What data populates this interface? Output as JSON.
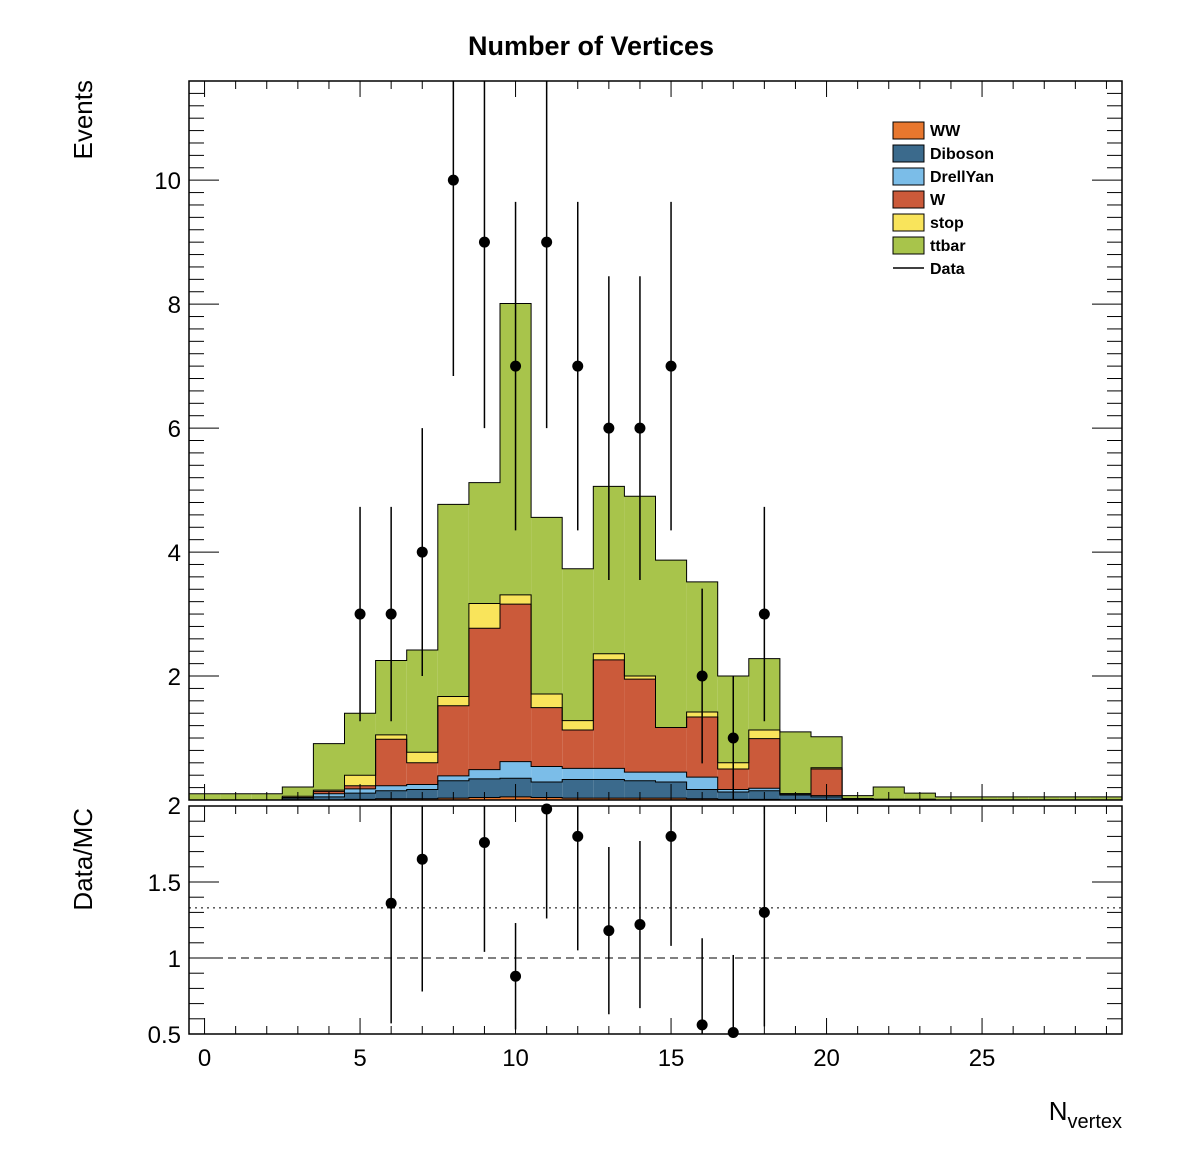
{
  "chart_data": [
    {
      "type": "bar",
      "stacked": true,
      "title": "Number of Vertices",
      "xlabel": "",
      "ylabel": "Events",
      "xlim": [
        -0.5,
        29.5
      ],
      "ylim": [
        0,
        11.6
      ],
      "y_ticks": [
        2,
        4,
        6,
        8,
        10
      ],
      "bin_edges": [
        -0.5,
        0.5,
        1.5,
        2.5,
        3.5,
        4.5,
        5.5,
        6.5,
        7.5,
        8.5,
        9.5,
        10.5,
        11.5,
        12.5,
        13.5,
        14.5,
        15.5,
        16.5,
        17.5,
        18.5,
        19.5,
        20.5,
        21.5,
        22.5,
        23.5,
        24.5,
        25.5,
        26.5,
        27.5,
        28.5,
        29.5
      ],
      "series": [
        {
          "name": "WW",
          "color": "#e8772e",
          "values": [
            0,
            0,
            0,
            0,
            0,
            0.01,
            0.02,
            0.02,
            0.03,
            0.04,
            0.05,
            0.04,
            0.03,
            0.03,
            0.03,
            0.03,
            0.02,
            0.01,
            0.01,
            0,
            0,
            0,
            0,
            0,
            0,
            0,
            0,
            0,
            0,
            0
          ]
        },
        {
          "name": "Diboson",
          "color": "#3b6a8c",
          "values": [
            0,
            0,
            0,
            0.02,
            0.05,
            0.1,
            0.13,
            0.15,
            0.28,
            0.3,
            0.3,
            0.25,
            0.3,
            0.3,
            0.28,
            0.26,
            0.15,
            0.12,
            0.14,
            0.08,
            0.05,
            0.02,
            0.01,
            0.01,
            0,
            0,
            0,
            0,
            0,
            0
          ]
        },
        {
          "name": "DrellYan",
          "color": "#7bbde8",
          "values": [
            0,
            0,
            0,
            0.02,
            0.05,
            0.07,
            0.08,
            0.08,
            0.08,
            0.15,
            0.27,
            0.25,
            0.18,
            0.18,
            0.14,
            0.16,
            0.2,
            0.04,
            0.04,
            0.02,
            0.02,
            0,
            0,
            0,
            0,
            0,
            0,
            0,
            0,
            0
          ]
        },
        {
          "name": "W",
          "color": "#cb5a3a",
          "values": [
            0,
            0,
            0,
            0,
            0.04,
            0.05,
            0.75,
            0.35,
            1.13,
            2.28,
            2.54,
            0.95,
            0.62,
            1.75,
            1.5,
            0.72,
            0.97,
            0.33,
            0.8,
            0,
            0.43,
            0,
            0,
            0,
            0,
            0,
            0,
            0,
            0,
            0
          ]
        },
        {
          "name": "stop",
          "color": "#f9e45b",
          "values": [
            0,
            0,
            0,
            0.02,
            0.02,
            0.17,
            0.07,
            0.17,
            0.15,
            0.4,
            0.15,
            0.22,
            0.15,
            0.1,
            0.05,
            0.0,
            0.08,
            0.1,
            0.14,
            0,
            0.02,
            0,
            0,
            0,
            0,
            0,
            0,
            0,
            0,
            0
          ]
        },
        {
          "name": "ttbar",
          "color": "#a8c44b",
          "values": [
            0.1,
            0.1,
            0.1,
            0.15,
            0.75,
            1.0,
            1.2,
            1.65,
            3.1,
            1.95,
            4.7,
            2.85,
            2.45,
            2.7,
            2.9,
            2.7,
            2.1,
            1.4,
            1.15,
            1.0,
            0.5,
            0.05,
            0.2,
            0.1,
            0.05,
            0.05,
            0.05,
            0.05,
            0.05,
            0.05
          ]
        }
      ],
      "data_series": {
        "name": "Data",
        "x": [
          5,
          6,
          7,
          8,
          9,
          10,
          11,
          12,
          13,
          14,
          15,
          16,
          17,
          18
        ],
        "y": [
          3,
          3,
          4,
          10,
          9,
          7,
          9,
          7,
          6,
          6,
          7,
          2,
          1,
          3
        ],
        "err_low": [
          1.73,
          1.73,
          2.0,
          3.16,
          3.0,
          2.65,
          3.0,
          2.65,
          2.45,
          2.45,
          2.65,
          1.41,
          1.0,
          1.73
        ],
        "err_high": [
          1.73,
          1.73,
          2.0,
          3.16,
          3.0,
          2.65,
          3.0,
          2.65,
          2.45,
          2.45,
          2.65,
          1.41,
          1.0,
          1.73
        ]
      },
      "legend_position": "top-right"
    },
    {
      "type": "scatter",
      "title": "",
      "xlabel": "N",
      "xlabel_sub": "vertex",
      "ylabel": "Data/MC",
      "xlim": [
        -0.5,
        29.5
      ],
      "ylim": [
        0.5,
        2.0
      ],
      "x_ticks": [
        0,
        5,
        10,
        15,
        20,
        25
      ],
      "y_ticks": [
        0.5,
        1,
        1.5,
        2
      ],
      "y_tick_labels": [
        "0.5",
        "1",
        "1.5",
        "2"
      ],
      "reference_lines": [
        {
          "y": 1.0,
          "style": "dashed"
        },
        {
          "y": 1.33,
          "style": "dotted"
        }
      ],
      "points": {
        "x": [
          6,
          7,
          9,
          10,
          11,
          12,
          13,
          14,
          15,
          16,
          17,
          18
        ],
        "y": [
          1.36,
          1.65,
          1.76,
          0.88,
          1.98,
          1.8,
          1.18,
          1.22,
          1.8,
          0.56,
          0.51,
          1.3
        ],
        "err_low": [
          0.79,
          0.87,
          0.72,
          0.35,
          0.72,
          0.75,
          0.55,
          0.55,
          0.72,
          0.57,
          0.51,
          0.75
        ],
        "err_high": [
          0.79,
          0.87,
          0.72,
          0.35,
          0.72,
          0.75,
          0.55,
          0.55,
          0.72,
          0.57,
          0.51,
          0.75
        ]
      }
    }
  ]
}
